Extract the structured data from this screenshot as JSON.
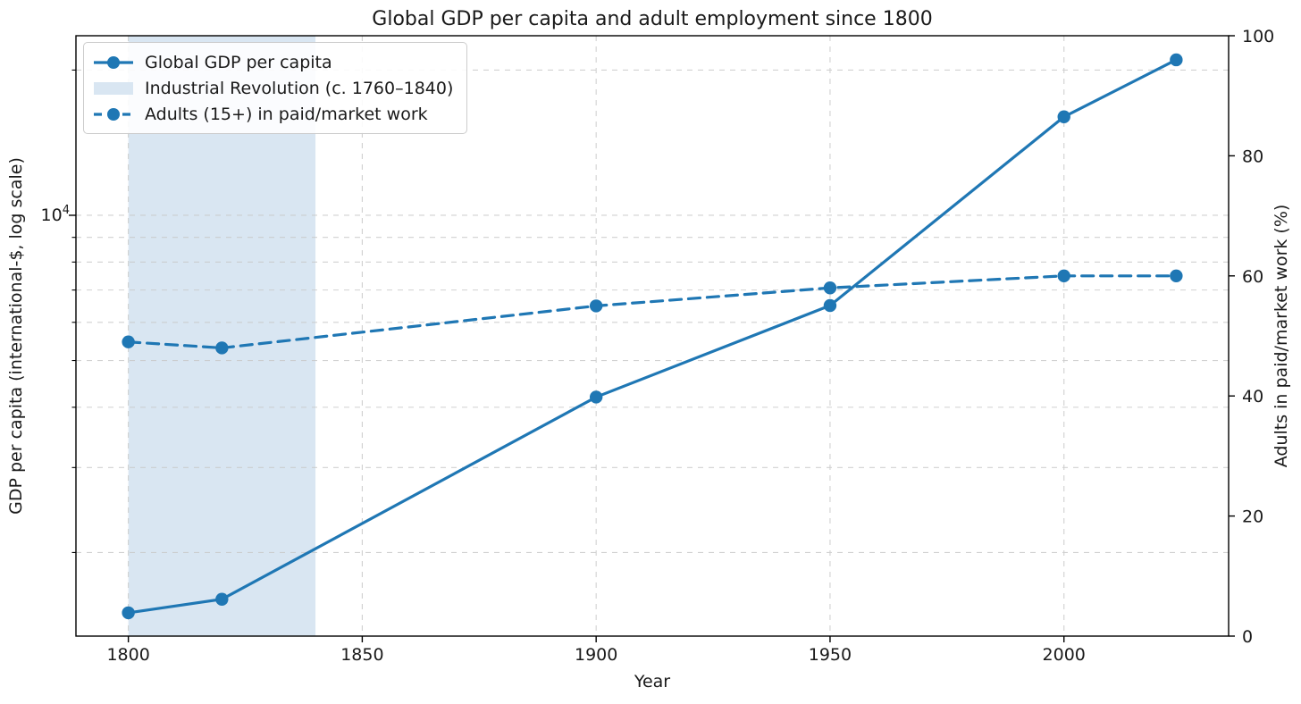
{
  "figure": {
    "title": "Global GDP per capita and adult employment since 1800",
    "xlabel": "Year",
    "ylabel_left": "GDP per capita (international-$, log scale)",
    "ylabel_right": "Adults in paid/market work (%)"
  },
  "legend": {
    "position": "upper left",
    "items": [
      {
        "label": "Global GDP per capita",
        "sample": "solid-line-with-marker"
      },
      {
        "label": "Industrial Revolution (c. 1760–1840)",
        "sample": "shaded-patch"
      },
      {
        "label": "Adults (15+) in paid/market work",
        "sample": "dashed-line-with-marker"
      }
    ]
  },
  "colors": {
    "series_blue": "#1f77b4",
    "band_fill": "#d9e6f2",
    "grid": "#c9c9c9",
    "axis": "#000000",
    "text": "#1a1a1a",
    "legend_border": "#cccccc",
    "legend_bg": "rgba(255,255,255,0.88)"
  },
  "chart_data": {
    "type": "line",
    "title": "Global GDP per capita and adult employment since 1800",
    "xlabel": "Year",
    "ylabel_left": "GDP per capita (international-$, log scale)",
    "ylabel_right": "Adults in paid/market work (%)",
    "x": [
      1800,
      1820,
      1900,
      1950,
      2000,
      2024
    ],
    "series": [
      {
        "name": "Global GDP per capita",
        "axis": "left",
        "style": "solid",
        "marker": "circle",
        "values": [
          1500,
          1600,
          4200,
          6500,
          16000,
          21000
        ]
      },
      {
        "name": "Adults (15+) in paid/market work",
        "axis": "right",
        "style": "dashed",
        "marker": "circle",
        "values": [
          49,
          48,
          55,
          58,
          60,
          60
        ]
      }
    ],
    "band": {
      "label": "Industrial Revolution (c. 1760–1840)",
      "x_start": 1800,
      "x_end": 1840
    },
    "x_axis": {
      "ticks": [
        1800,
        1850,
        1900,
        1950,
        2000
      ],
      "range": [
        1788.8,
        2035.2
      ]
    },
    "y_axis_left": {
      "scale": "log",
      "range": [
        1342,
        23560
      ],
      "major_tick_values": [
        10000
      ],
      "major_tick_labels": [
        "10⁴"
      ],
      "gridline_values": [
        2000,
        3000,
        4000,
        5000,
        6000,
        7000,
        8000,
        9000,
        10000,
        20000
      ]
    },
    "y_axis_right": {
      "scale": "linear",
      "range": [
        0,
        100
      ],
      "ticks": [
        0,
        20,
        40,
        60,
        80,
        100
      ]
    },
    "grid": true,
    "legend_position": "upper left"
  }
}
